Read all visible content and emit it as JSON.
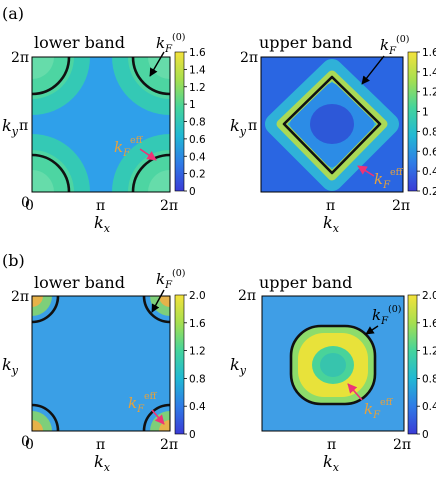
{
  "figure": {
    "panel_labels": [
      "(a)",
      "(b)"
    ],
    "axis_tick_labels": {
      "zero": "0",
      "pi": "π",
      "two_pi": "2π"
    },
    "axis_symbols": {
      "kx": "k",
      "kx_sub": "x",
      "ky": "k",
      "ky_sub": "y"
    },
    "annotations": {
      "kF0_main": "k",
      "kF0_sub": "F",
      "kF0_sup": "(0)",
      "kFeff_main": "k",
      "kFeff_sub": "F",
      "kFeff_sup": "eff"
    },
    "colors": {
      "fermi_contour": "#111111",
      "kF0_arrow": "#000000",
      "kFeff_arrow": "#ee3377",
      "kFeff_label": "#e6a23c"
    },
    "colormap": [
      "#3a3bd6",
      "#2f7be6",
      "#21b8d4",
      "#44d49c",
      "#a6df4f",
      "#f4e23b"
    ]
  },
  "chart_data": [
    {
      "type": "heatmap",
      "panel": "a",
      "title": "lower band",
      "xlabel": "kx",
      "ylabel": "ky",
      "x_ticks": [
        "0",
        "π",
        "2π"
      ],
      "y_ticks": [
        "0",
        "π",
        "2π"
      ],
      "colorbar_range": [
        0,
        1.6
      ],
      "colorbar_ticks": [
        "0",
        "0.2",
        "0.4",
        "0.6",
        "0.8",
        "1",
        "1.2",
        "1.4",
        "1.6"
      ],
      "fermi_surface": "corner pockets around (0,0), (0,2π), (2π,0), (2π,2π)",
      "annotations": [
        "kF(0)",
        "kF eff"
      ]
    },
    {
      "type": "heatmap",
      "panel": "a",
      "title": "upper band",
      "xlabel": "kx",
      "ylabel": "ky",
      "x_ticks": [
        "0",
        "π",
        "2π"
      ],
      "y_ticks": [
        "π",
        "2π"
      ],
      "colorbar_range": [
        0.2,
        1.6
      ],
      "colorbar_ticks": [
        "0.2",
        "0.4",
        "0.6",
        "0.8",
        "1",
        "1.2",
        "1.4",
        "1.6"
      ],
      "fermi_surface": "rounded diamond centered at (π,π)",
      "annotations": [
        "kF(0)",
        "kF eff"
      ]
    },
    {
      "type": "heatmap",
      "panel": "b",
      "title": "lower band",
      "xlabel": "kx",
      "ylabel": "ky",
      "x_ticks": [
        "0",
        "π",
        "2π"
      ],
      "y_ticks": [
        "0",
        "2π"
      ],
      "colorbar_range": [
        0,
        2.0
      ],
      "colorbar_ticks": [
        "0",
        "0.4",
        "0.8",
        "1.2",
        "1.6",
        "2.0"
      ],
      "fermi_surface": "small corner pockets",
      "annotations": [
        "kF(0)",
        "kF eff"
      ]
    },
    {
      "type": "heatmap",
      "panel": "b",
      "title": "upper band",
      "xlabel": "kx",
      "ylabel": "ky",
      "x_ticks": [
        "0",
        "π",
        "2π"
      ],
      "y_ticks": [
        "2π"
      ],
      "colorbar_range": [
        0,
        2.0
      ],
      "colorbar_ticks": [
        "0",
        "0.4",
        "0.8",
        "1.2",
        "1.6",
        "2.0"
      ],
      "fermi_surface": "rounded square centered at (π,π)",
      "annotations": [
        "kF(0)",
        "kF eff"
      ]
    }
  ]
}
